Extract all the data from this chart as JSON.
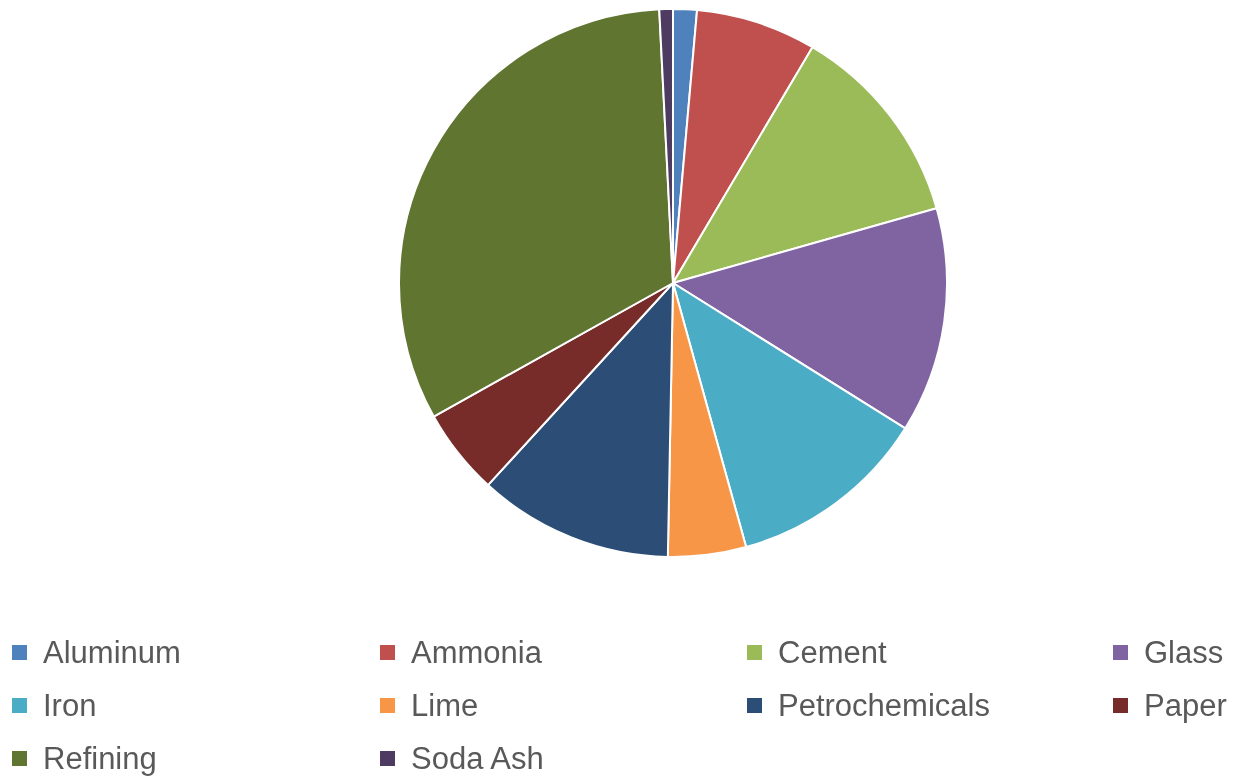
{
  "chart_data": {
    "type": "pie",
    "categories": [
      "Aluminum",
      "Ammonia",
      "Cement",
      "Glass",
      "Iron",
      "Lime",
      "Petrochemicals",
      "Paper",
      "Refining",
      "Soda Ash"
    ],
    "values": [
      1.4,
      7.1,
      12.1,
      13.3,
      11.8,
      4.6,
      11.5,
      5.1,
      32.3,
      0.8
    ],
    "colors": [
      "#4f81bd",
      "#c0504d",
      "#9bbb59",
      "#8064a2",
      "#4bacc6",
      "#f79646",
      "#2c4d75",
      "#772c2a",
      "#5f7530",
      "#4d3b62"
    ],
    "legend": "bottom"
  }
}
